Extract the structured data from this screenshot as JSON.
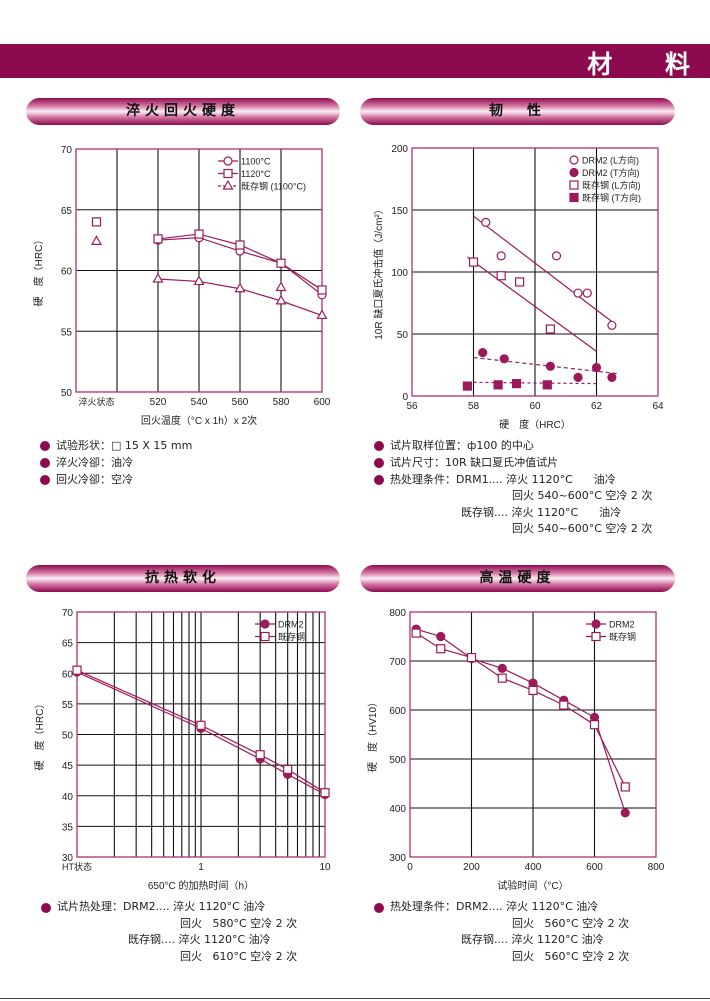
{
  "header": {
    "title": "材 料",
    "color": "#8e0a4e"
  },
  "sections": [
    {
      "title": "淬火回火硬度"
    },
    {
      "title": "韧　性"
    },
    {
      "title": "抗热软化"
    },
    {
      "title": "高温硬度"
    }
  ],
  "notes": {
    "quench_temper": [
      "试验形状：□ 15 X 15 mm",
      "淬火冷卻：油冷",
      "回火冷卻：空冷"
    ],
    "toughness": [
      "试片取样位置：ф100 的中心",
      "试片尺寸：10R 缺口夏氏冲值试片",
      "热处理条件：DRM1.... 淬火 1120°C      油冷",
      "回火 540~600°C 空冷 2 次",
      "既存钢.... 淬火 1120°C      油冷",
      "回火 540~600°C 空冷 2 次"
    ],
    "softening": [
      "试片热处理：DRM2.... 淬火 1120°C 油冷",
      "回火   580°C 空冷 2 次",
      "既存钢.... 淬火 1120°C 油冷",
      "回火   610°C 空冷 2 次"
    ],
    "hot_hardness": [
      "热处理条件：DRM2.... 淬火 1120°C 油冷",
      "回火   560°C 空冷 2 次",
      "既存钢.... 淬火 1120°C 油冷",
      "回火   560°C 空冷 2 次"
    ]
  },
  "chart_data": [
    {
      "type": "line",
      "xlabel": "回火温度（°C x 1h）x 2次",
      "ylabel": "硬　度（HRC）",
      "xlim": [
        480,
        600
      ],
      "ylim": [
        50,
        70
      ],
      "x_scale": "linear",
      "x_ticks": [
        {
          "v": 490,
          "label": "淬火状态"
        },
        {
          "v": 520,
          "label": "520"
        },
        {
          "v": 540,
          "label": "540"
        },
        {
          "v": 560,
          "label": "560"
        },
        {
          "v": 580,
          "label": "580"
        },
        {
          "v": 600,
          "label": "600"
        }
      ],
      "y_ticks": [
        50,
        55,
        60,
        65,
        70
      ],
      "x_gridlines": [
        500,
        520,
        540,
        560,
        580
      ],
      "y_gridlines": [
        55,
        60,
        65
      ],
      "grid": true,
      "legend": "top-right",
      "legend_lines": true,
      "series": [
        {
          "name": "1100°C",
          "marker": "circle-open",
          "x": [
            490,
            520,
            540,
            560,
            580,
            600
          ],
          "y": [
            64.0,
            62.5,
            62.7,
            61.6,
            60.6,
            58.0
          ],
          "connect_from": 1
        },
        {
          "name": "1120°C",
          "marker": "square-open",
          "x": [
            490,
            520,
            540,
            560,
            580,
            600
          ],
          "y": [
            64.0,
            62.6,
            63.0,
            62.1,
            60.6,
            58.4
          ],
          "connect_from": 1
        },
        {
          "name": "既存钢 (1100°C)",
          "marker": "triangle-open",
          "x": [
            490,
            520,
            540,
            560,
            580,
            600
          ],
          "y": [
            62.4,
            59.3,
            59.1,
            58.5,
            57.5,
            56.3
          ],
          "connect_from": 1,
          "extra_points": [
            [
              580,
              58.6
            ]
          ]
        }
      ]
    },
    {
      "type": "scatter",
      "xlabel": "硬　度（HRC）",
      "ylabel": "10R 缺口夏氏冲击值（J/cm²）",
      "xlim": [
        56,
        64
      ],
      "ylim": [
        0,
        200
      ],
      "x_scale": "linear",
      "x_ticks": [
        {
          "v": 56,
          "label": "56"
        },
        {
          "v": 58,
          "label": "58"
        },
        {
          "v": 60,
          "label": "60"
        },
        {
          "v": 62,
          "label": "62"
        },
        {
          "v": 64,
          "label": "64"
        }
      ],
      "y_ticks": [
        0,
        50,
        100,
        150,
        200
      ],
      "x_gridlines": [
        58,
        60,
        62
      ],
      "y_gridlines": [
        50,
        100,
        150
      ],
      "grid": true,
      "legend": "top-right",
      "legend_lines": false,
      "series": [
        {
          "name": "DRM2 (L方向)",
          "marker": "circle-open",
          "x": [
            58.4,
            58.9,
            60.7,
            61.4,
            61.7,
            62.5
          ],
          "y": [
            140,
            113,
            113,
            83,
            83,
            57
          ],
          "trend": {
            "x": [
              58.0,
              62.5
            ],
            "y": [
              145,
              60
            ],
            "dash": "none"
          }
        },
        {
          "name": "DRM2 (T方向)",
          "marker": "circle-filled",
          "x": [
            58.3,
            59.0,
            60.5,
            61.4,
            62.0,
            62.5
          ],
          "y": [
            35,
            30,
            24,
            15,
            23,
            15
          ],
          "trend": {
            "x": [
              58.0,
              62.7
            ],
            "y": [
              31,
              18
            ],
            "dash": "4,3"
          }
        },
        {
          "name": "既存钢 (L方向)",
          "marker": "square-open",
          "x": [
            58.0,
            58.9,
            59.5,
            60.5
          ],
          "y": [
            108,
            97,
            92,
            54
          ],
          "trend": {
            "x": [
              57.8,
              62.0
            ],
            "y": [
              112,
              36
            ],
            "dash": "none"
          }
        },
        {
          "name": "既存钢 (T方向)",
          "marker": "square-filled",
          "x": [
            57.8,
            58.8,
            59.4,
            60.4
          ],
          "y": [
            8,
            9,
            10,
            9
          ],
          "trend": {
            "x": [
              58.0,
              62.0
            ],
            "y": [
              11,
              10
            ],
            "dash": "3,3"
          }
        }
      ]
    },
    {
      "type": "line",
      "xlabel": "650°C 的加热时间（h）",
      "ylabel": "硬　度（HRC）",
      "xlim": [
        0.1,
        10
      ],
      "ylim": [
        30,
        70
      ],
      "x_scale": "log",
      "x_ticks": [
        {
          "v": 0.1,
          "label": "HT状态"
        },
        {
          "v": 1,
          "label": "1"
        },
        {
          "v": 10,
          "label": "10"
        }
      ],
      "y_ticks": [
        30,
        35,
        40,
        45,
        50,
        55,
        60,
        65,
        70
      ],
      "x_gridlines": [
        0.2,
        0.3,
        0.4,
        0.5,
        0.6,
        0.7,
        0.8,
        0.9,
        1,
        2,
        3,
        4,
        5,
        6,
        7,
        8,
        9
      ],
      "y_gridlines": [
        35,
        40,
        45,
        50,
        55,
        60,
        65
      ],
      "grid": true,
      "legend": "top-right",
      "legend_lines": true,
      "series": [
        {
          "name": "DRM2",
          "marker": "circle-filled",
          "x": [
            0.1,
            1,
            3,
            5,
            10
          ],
          "y": [
            60.2,
            51.0,
            46.0,
            43.5,
            40.2
          ]
        },
        {
          "name": "既存钢",
          "marker": "square-open",
          "x": [
            0.1,
            1,
            3,
            5,
            10
          ],
          "y": [
            60.5,
            51.5,
            46.7,
            44.3,
            40.5
          ]
        }
      ]
    },
    {
      "type": "line",
      "xlabel": "试验时间（°C）",
      "ylabel": "硬　度（HV10）",
      "xlim": [
        0,
        800
      ],
      "ylim": [
        300,
        800
      ],
      "x_scale": "linear",
      "x_ticks": [
        {
          "v": 0,
          "label": "0"
        },
        {
          "v": 200,
          "label": "200"
        },
        {
          "v": 400,
          "label": "400"
        },
        {
          "v": 600,
          "label": "600"
        },
        {
          "v": 800,
          "label": "800"
        }
      ],
      "y_ticks": [
        300,
        400,
        500,
        600,
        700,
        800
      ],
      "x_gridlines": [
        200,
        400,
        600
      ],
      "y_gridlines": [
        400,
        500,
        600,
        700
      ],
      "grid": true,
      "legend": "top-right",
      "legend_lines": true,
      "series": [
        {
          "name": "DRM2",
          "marker": "circle-filled",
          "x": [
            20,
            100,
            200,
            300,
            400,
            500,
            600,
            700
          ],
          "y": [
            765,
            750,
            705,
            685,
            655,
            620,
            585,
            390
          ]
        },
        {
          "name": "既存钢",
          "marker": "square-open",
          "x": [
            20,
            100,
            200,
            300,
            400,
            500,
            600,
            700
          ],
          "y": [
            757,
            725,
            707,
            665,
            640,
            610,
            570,
            443
          ]
        }
      ]
    }
  ]
}
